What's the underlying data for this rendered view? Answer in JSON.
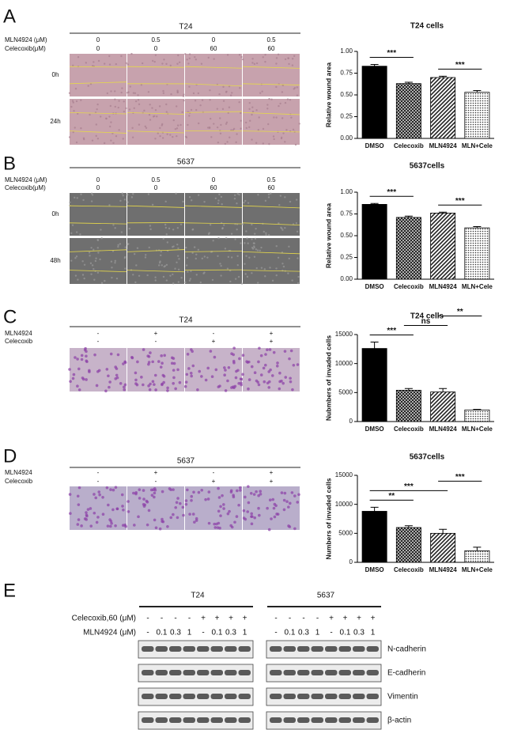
{
  "panels": [
    {
      "letter": "A",
      "title": "T24",
      "rows": [
        {
          "label": "MLN4924 (μM)",
          "values": [
            "0",
            "0.5",
            "0",
            "0.5"
          ]
        },
        {
          "label": "Celecoxib(μM)",
          "values": [
            "0",
            "0",
            "60",
            "60"
          ]
        }
      ],
      "image_rows": [
        "0h",
        "24h"
      ]
    },
    {
      "letter": "B",
      "title": "5637",
      "rows": [
        {
          "label": "MLN4924 (μM)",
          "values": [
            "0",
            "0.5",
            "0",
            "0.5"
          ]
        },
        {
          "label": "Celecoxib(μM)",
          "values": [
            "0",
            "0",
            "60",
            "60"
          ]
        }
      ],
      "image_rows": [
        "0h",
        "48h"
      ]
    },
    {
      "letter": "C",
      "title": "T24",
      "rows": [
        {
          "label": "MLN4924",
          "values": [
            "-",
            "+",
            "-",
            "+"
          ]
        },
        {
          "label": "Celecoxib",
          "values": [
            "-",
            "-",
            "+",
            "+"
          ]
        }
      ]
    },
    {
      "letter": "D",
      "title": "5637",
      "rows": [
        {
          "label": "MLN4924",
          "values": [
            "-",
            "+",
            "-",
            "+"
          ]
        },
        {
          "label": "Celecoxib",
          "values": [
            "-",
            "-",
            "+",
            "+"
          ]
        }
      ]
    }
  ],
  "blot": {
    "letter": "E",
    "groups": [
      "T24",
      "5637"
    ],
    "rows": [
      {
        "label": "Celecoxib,60 (μM)",
        "values": [
          "-",
          "-",
          "-",
          "-",
          "+",
          "+",
          "+",
          "+"
        ]
      },
      {
        "label": "MLN4924 (μM)",
        "values": [
          "-",
          "0.1",
          "0.3",
          "1",
          "-",
          "0.1",
          "0.3",
          "1"
        ]
      }
    ],
    "proteins": [
      "N-cadherin",
      "E-cadherin",
      "Vimentin",
      "β-actin"
    ]
  },
  "chart_data": [
    {
      "type": "bar",
      "title": "T24 cells",
      "y_label": "Relative wound area",
      "categories": [
        "DMSO",
        "Celecoxib",
        "MLN4924",
        "MLN+Cele"
      ],
      "values": [
        0.83,
        0.63,
        0.7,
        0.53
      ],
      "errors": [
        0.02,
        0.015,
        0.015,
        0.02
      ],
      "ylim": [
        0,
        1.0
      ],
      "yticks": [
        {
          "value": 0,
          "label": "0.00"
        },
        {
          "value": 0.25,
          "label": "0.25"
        },
        {
          "value": 0.5,
          "label": "0.50"
        },
        {
          "value": 0.75,
          "label": "0.75"
        },
        {
          "value": 1.0,
          "label": "1.00"
        }
      ],
      "significance": [
        {
          "label": "***",
          "between": [
            "DMSO",
            "Celecoxib"
          ]
        },
        {
          "label": "***",
          "between": [
            "MLN4924",
            "MLN+Cele"
          ]
        }
      ]
    },
    {
      "type": "bar",
      "title": "5637cells",
      "y_label": "Relative wound area",
      "categories": [
        "DMSO",
        "Celecoxib",
        "MLN4924",
        "MLN+Cele"
      ],
      "values": [
        0.86,
        0.71,
        0.76,
        0.59
      ],
      "errors": [
        0.01,
        0.015,
        0.01,
        0.015
      ],
      "ylim": [
        0,
        1.0
      ],
      "yticks": [
        {
          "value": 0,
          "label": "0.00"
        },
        {
          "value": 0.25,
          "label": "0.25"
        },
        {
          "value": 0.5,
          "label": "0.50"
        },
        {
          "value": 0.75,
          "label": "0.75"
        },
        {
          "value": 1.0,
          "label": "1.00"
        }
      ],
      "significance": [
        {
          "label": "***",
          "between": [
            "DMSO",
            "Celecoxib"
          ]
        },
        {
          "label": "***",
          "between": [
            "MLN4924",
            "MLN+Cele"
          ]
        }
      ]
    },
    {
      "type": "bar",
      "title": "T24 cells",
      "y_label": "Nubmbers of invaded cells",
      "categories": [
        "DMSO",
        "Celecoxib",
        "MLN4924",
        "MLN+Cele"
      ],
      "values": [
        12600,
        5400,
        5100,
        2000
      ],
      "errors": [
        1100,
        300,
        600,
        100
      ],
      "ylim": [
        0,
        15000
      ],
      "yticks": [
        0,
        5000,
        10000,
        15000
      ],
      "significance": [
        {
          "label": "***",
          "between": [
            "DMSO",
            "Celecoxib"
          ]
        },
        {
          "label": "ns",
          "between": [
            "Celecoxib",
            "MLN4924"
          ]
        },
        {
          "label": "**",
          "between": [
            "MLN4924",
            "MLN+Cele"
          ]
        }
      ]
    },
    {
      "type": "bar",
      "title": "5637cells",
      "y_label": "Numbers of invaded cells",
      "categories": [
        "DMSO",
        "Celecoxib",
        "MLN4924",
        "MLN+Cele"
      ],
      "values": [
        8800,
        6000,
        5000,
        2000
      ],
      "errors": [
        700,
        300,
        700,
        600
      ],
      "ylim": [
        0,
        15000
      ],
      "yticks": [
        0,
        5000,
        10000,
        15000
      ],
      "significance": [
        {
          "label": "**",
          "between": [
            "DMSO",
            "Celecoxib"
          ]
        },
        {
          "label": "***",
          "between": [
            "DMSO",
            "MLN4924"
          ]
        },
        {
          "label": "***",
          "between": [
            "MLN4924",
            "MLN+Cele"
          ]
        }
      ]
    }
  ]
}
